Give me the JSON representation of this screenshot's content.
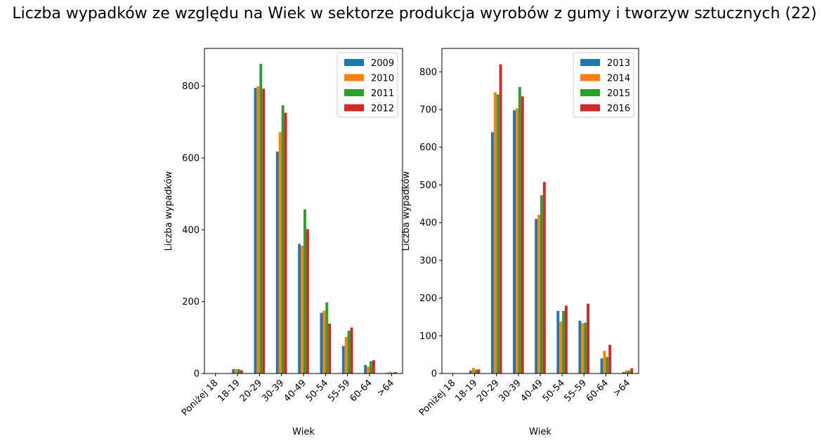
{
  "figure": {
    "title": "Liczba wypadków ze względu na Wiek w sektorze produkcja wyrobów z gumy i tworzyw sztucznych (22)"
  },
  "chart_data": [
    {
      "type": "bar",
      "xlabel": "Wiek",
      "ylabel": "Liczba wypadków",
      "categories": [
        "Poniżej 18",
        "18-19",
        "20-29",
        "30-39",
        "40-49",
        "50-54",
        "55-59",
        "60-64",
        ">64"
      ],
      "ylim": [
        0,
        905
      ],
      "yticks": [
        0,
        200,
        400,
        600,
        800
      ],
      "legend_position": "top-right",
      "series": [
        {
          "name": "2009",
          "color": "#1f77b4",
          "values": [
            0,
            12,
            795,
            618,
            361,
            169,
            77,
            24,
            2
          ]
        },
        {
          "name": "2010",
          "color": "#ff7f0e",
          "values": [
            0,
            12,
            800,
            672,
            356,
            175,
            102,
            19,
            4
          ]
        },
        {
          "name": "2011",
          "color": "#2ca02c",
          "values": [
            0,
            12,
            862,
            747,
            457,
            198,
            119,
            34,
            2
          ]
        },
        {
          "name": "2012",
          "color": "#d62728",
          "values": [
            0,
            9,
            793,
            726,
            402,
            139,
            128,
            37,
            4
          ]
        }
      ]
    },
    {
      "type": "bar",
      "xlabel": "Wiek",
      "ylabel": "Liczba wypadków",
      "categories": [
        "Poniżej 18",
        "18-19",
        "20-29",
        "30-39",
        "40-49",
        "50-54",
        "55-59",
        "60-64",
        ">64"
      ],
      "ylim": [
        0,
        862
      ],
      "yticks": [
        0,
        100,
        200,
        300,
        400,
        500,
        600,
        700,
        800
      ],
      "legend_position": "top-right",
      "series": [
        {
          "name": "2013",
          "color": "#1f77b4",
          "values": [
            0,
            8,
            640,
            698,
            410,
            166,
            140,
            40,
            4
          ]
        },
        {
          "name": "2014",
          "color": "#ff7f0e",
          "values": [
            0,
            15,
            746,
            703,
            421,
            138,
            133,
            60,
            8
          ]
        },
        {
          "name": "2015",
          "color": "#2ca02c",
          "values": [
            0,
            10,
            740,
            760,
            473,
            166,
            135,
            44,
            8
          ]
        },
        {
          "name": "2016",
          "color": "#d62728",
          "values": [
            0,
            11,
            820,
            735,
            508,
            180,
            185,
            76,
            14
          ]
        }
      ]
    }
  ]
}
